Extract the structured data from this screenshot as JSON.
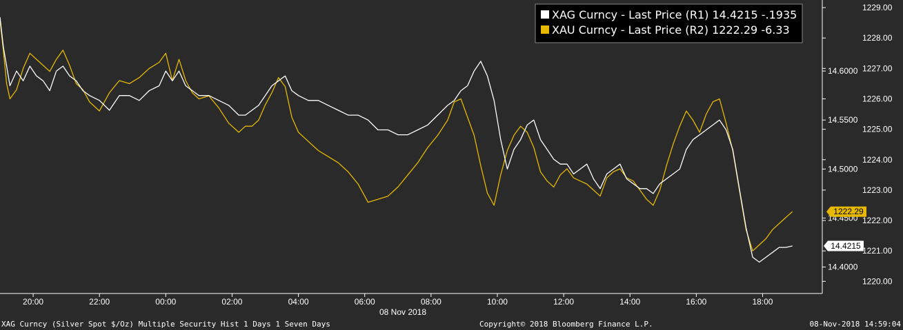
{
  "chart_data": {
    "type": "line",
    "x_date_label": "08 Nov 2018",
    "x_ticks": [
      "20:00",
      "22:00",
      "00:00",
      "02:00",
      "04:00",
      "06:00",
      "08:00",
      "10:00",
      "12:00",
      "14:00",
      "16:00",
      "18:00"
    ],
    "x_range_hours": [
      19.0,
      43.8
    ],
    "y_left_ticks": [
      "14.6000",
      "14.5500",
      "14.5000",
      "14.4500",
      "14.4000"
    ],
    "y_right_ticks": [
      "1229.00",
      "1228.00",
      "1227.00",
      "1226.00",
      "1225.00",
      "1224.00",
      "1223.00",
      "1222.00",
      "1221.00",
      "1220.00"
    ],
    "ylim_r1": [
      14.373,
      14.6725
    ],
    "ylim_r2": [
      1219.6,
      1229.25
    ],
    "legend": [
      {
        "marker_color": "#ffffff",
        "label": "XAG Curncy - Last Price (R1) 14.4215  -.1935"
      },
      {
        "marker_color": "#e6b800",
        "label": "XAU Curncy - Last Price (R2) 1222.29  -6.33"
      }
    ],
    "last_price_tags": [
      {
        "series": "XAU",
        "label": "1222.29",
        "value": 1222.29,
        "bg": "#e6b800",
        "text_color": "#000000"
      },
      {
        "series": "XAG",
        "label": "14.4215",
        "value": 14.4215,
        "bg": "#ffffff",
        "text_color": "#000000"
      }
    ],
    "series": [
      {
        "name": "XAG Curncy",
        "axis": "R1",
        "color": "#ffffff",
        "x": [
          19.0,
          19.1,
          19.2,
          19.3,
          19.5,
          19.7,
          19.9,
          20.1,
          20.3,
          20.5,
          20.7,
          20.9,
          21.1,
          21.3,
          21.5,
          21.7,
          22.0,
          22.3,
          22.6,
          22.9,
          23.2,
          23.5,
          23.8,
          24.0,
          24.2,
          24.4,
          24.6,
          24.8,
          25.0,
          25.3,
          25.6,
          25.9,
          26.2,
          26.4,
          26.6,
          26.8,
          27.0,
          27.2,
          27.4,
          27.6,
          27.8,
          28.0,
          28.3,
          28.6,
          28.9,
          29.2,
          29.5,
          29.8,
          30.1,
          30.4,
          30.7,
          31.0,
          31.3,
          31.6,
          31.9,
          32.2,
          32.5,
          32.7,
          32.9,
          33.1,
          33.3,
          33.5,
          33.7,
          33.9,
          34.1,
          34.3,
          34.5,
          34.7,
          34.9,
          35.1,
          35.3,
          35.5,
          35.7,
          35.9,
          36.1,
          36.3,
          36.5,
          36.7,
          36.9,
          37.1,
          37.3,
          37.5,
          37.7,
          37.9,
          38.1,
          38.3,
          38.5,
          38.7,
          38.9,
          39.1,
          39.3,
          39.5,
          39.7,
          39.9,
          40.1,
          40.3,
          40.5,
          40.7,
          40.9,
          41.1,
          41.3,
          41.5,
          41.7,
          41.9,
          42.1,
          42.3,
          42.5,
          42.7,
          42.9
        ],
        "y": [
          14.655,
          14.625,
          14.605,
          14.585,
          14.6,
          14.59,
          14.605,
          14.595,
          14.59,
          14.58,
          14.6,
          14.605,
          14.595,
          14.59,
          14.58,
          14.575,
          14.57,
          14.56,
          14.575,
          14.575,
          14.57,
          14.58,
          14.585,
          14.6,
          14.59,
          14.6,
          14.585,
          14.58,
          14.575,
          14.575,
          14.57,
          14.565,
          14.555,
          14.555,
          14.56,
          14.565,
          14.575,
          14.585,
          14.59,
          14.595,
          14.58,
          14.575,
          14.57,
          14.57,
          14.565,
          14.56,
          14.555,
          14.555,
          14.55,
          14.54,
          14.54,
          14.535,
          14.535,
          14.54,
          14.545,
          14.555,
          14.565,
          14.57,
          14.58,
          14.585,
          14.6,
          14.61,
          14.595,
          14.57,
          14.53,
          14.5,
          14.52,
          14.53,
          14.545,
          14.55,
          14.53,
          14.52,
          14.51,
          14.505,
          14.505,
          14.495,
          14.5,
          14.505,
          14.49,
          14.48,
          14.495,
          14.5,
          14.505,
          14.49,
          14.485,
          14.48,
          14.48,
          14.475,
          14.485,
          14.49,
          14.495,
          14.5,
          14.52,
          14.53,
          14.535,
          14.54,
          14.545,
          14.55,
          14.54,
          14.52,
          14.48,
          14.44,
          14.41,
          14.405,
          14.41,
          14.415,
          14.42,
          14.42,
          14.4215
        ]
      },
      {
        "name": "XAU Curncy",
        "axis": "R2",
        "color": "#e6b800",
        "x": [
          19.0,
          19.1,
          19.2,
          19.3,
          19.5,
          19.7,
          19.9,
          20.1,
          20.3,
          20.5,
          20.7,
          20.9,
          21.1,
          21.3,
          21.5,
          21.7,
          22.0,
          22.3,
          22.6,
          22.9,
          23.2,
          23.5,
          23.8,
          24.0,
          24.2,
          24.4,
          24.6,
          24.8,
          25.0,
          25.3,
          25.6,
          25.9,
          26.2,
          26.4,
          26.6,
          26.8,
          27.0,
          27.2,
          27.4,
          27.6,
          27.8,
          28.0,
          28.3,
          28.6,
          28.9,
          29.2,
          29.5,
          29.8,
          30.1,
          30.4,
          30.7,
          31.0,
          31.3,
          31.6,
          31.9,
          32.2,
          32.5,
          32.7,
          32.9,
          33.1,
          33.3,
          33.5,
          33.7,
          33.9,
          34.1,
          34.3,
          34.5,
          34.7,
          34.9,
          35.1,
          35.3,
          35.5,
          35.7,
          35.9,
          36.1,
          36.3,
          36.5,
          36.7,
          36.9,
          37.1,
          37.3,
          37.5,
          37.7,
          37.9,
          38.1,
          38.3,
          38.5,
          38.7,
          38.9,
          39.1,
          39.3,
          39.5,
          39.7,
          39.9,
          40.1,
          40.3,
          40.5,
          40.7,
          40.9,
          41.1,
          41.3,
          41.5,
          41.7,
          41.9,
          42.1,
          42.3,
          42.5,
          42.7,
          42.9
        ],
        "y": [
          1228.6,
          1227.6,
          1226.5,
          1226.0,
          1226.3,
          1227.0,
          1227.5,
          1227.3,
          1227.1,
          1226.9,
          1227.3,
          1227.6,
          1227.1,
          1226.5,
          1226.3,
          1225.9,
          1225.6,
          1226.2,
          1226.6,
          1226.5,
          1226.7,
          1227.0,
          1227.2,
          1227.5,
          1226.6,
          1227.3,
          1226.6,
          1226.2,
          1226.0,
          1226.1,
          1225.7,
          1225.2,
          1224.9,
          1225.1,
          1225.1,
          1225.3,
          1225.8,
          1226.2,
          1226.7,
          1226.4,
          1225.4,
          1224.9,
          1224.6,
          1224.3,
          1224.1,
          1223.9,
          1223.6,
          1223.2,
          1222.6,
          1222.7,
          1222.8,
          1223.1,
          1223.5,
          1223.9,
          1224.4,
          1224.8,
          1225.3,
          1225.9,
          1226.0,
          1225.4,
          1224.8,
          1223.8,
          1222.9,
          1222.5,
          1223.5,
          1224.3,
          1224.8,
          1225.1,
          1224.9,
          1224.4,
          1223.6,
          1223.3,
          1223.1,
          1223.5,
          1223.7,
          1223.4,
          1223.3,
          1223.2,
          1223.0,
          1222.8,
          1223.4,
          1223.6,
          1223.7,
          1223.4,
          1223.3,
          1223.0,
          1222.7,
          1222.5,
          1223.0,
          1223.8,
          1224.5,
          1225.1,
          1225.6,
          1225.3,
          1224.9,
          1225.5,
          1225.9,
          1226.0,
          1225.2,
          1224.3,
          1223.0,
          1221.7,
          1221.0,
          1221.2,
          1221.4,
          1221.7,
          1221.9,
          1222.1,
          1222.29
        ]
      }
    ]
  },
  "footer": {
    "left": "XAG Curncy (Silver Spot  $/Oz) Multiple Security Hist   1 Days 1 Seven Days",
    "center": "Copyright© 2018 Bloomberg Finance L.P.",
    "right": "08-Nov-2018 14:59:04"
  }
}
